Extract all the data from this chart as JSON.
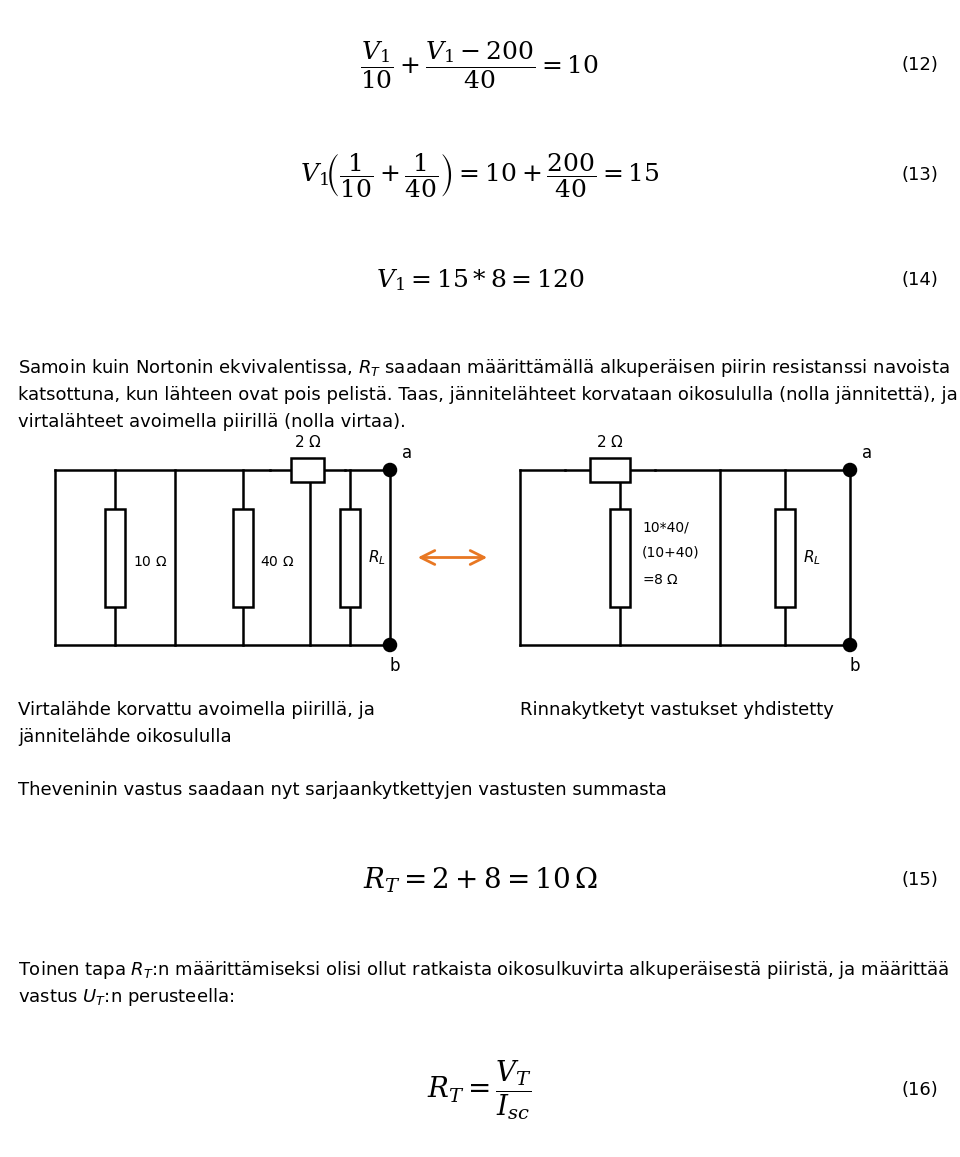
{
  "bg_color": "#ffffff",
  "eq12": "$\\dfrac{V_1}{10} + \\dfrac{V_1 - 200}{40} = 10$",
  "eq12_num": "(12)",
  "eq13": "$V_1\\!\\left(\\dfrac{1}{10} + \\dfrac{1}{40}\\right) = 10 + \\dfrac{200}{40} = 15$",
  "eq13_num": "(13)",
  "eq14": "$V_1 = 15 * 8 = 120$",
  "eq14_num": "(14)",
  "caption_left_1": "Virtalähde korvattu avoimella piirillä, ja",
  "caption_left_2": "jännitelähde oikosululla",
  "caption_right": "Rinnakytketyt vastukset yhdistetty",
  "text_thevenin": "Theveninin vastus saadaan nyt sarjaankytkettyjen vastusten summasta",
  "eq15": "$R_T = 2 + 8 = 10\\,\\Omega$",
  "eq15_num": "(15)",
  "text_toinen_1": "Toinen tapa $R_T$:n määrittämiseksi olisi ollut ratkaista oikosulkuvirta alkuperäisestä piiristä, ja määrittää",
  "text_toinen_2": "vastus $U_T$:n perusteella:",
  "eq16": "$R_T = \\dfrac{V_T}{I_{sc}}$",
  "eq16_num": "(16)",
  "arrow_color": "#E87722",
  "line_color": "#000000",
  "para1_1": "Samoin kuin Nortonin ekvivalentissa, $R_T$ saadaan määrittämällä alkuperäisen piirin resistanssi navoista",
  "para1_2": "katsottuna, kun lähteen ovat pois pelistä. Taas, jännitelähteet korvataan oikosululla (nolla jännitettä), ja",
  "para1_3": "virtalähteet avoimella piirillä (nolla virtaa)."
}
